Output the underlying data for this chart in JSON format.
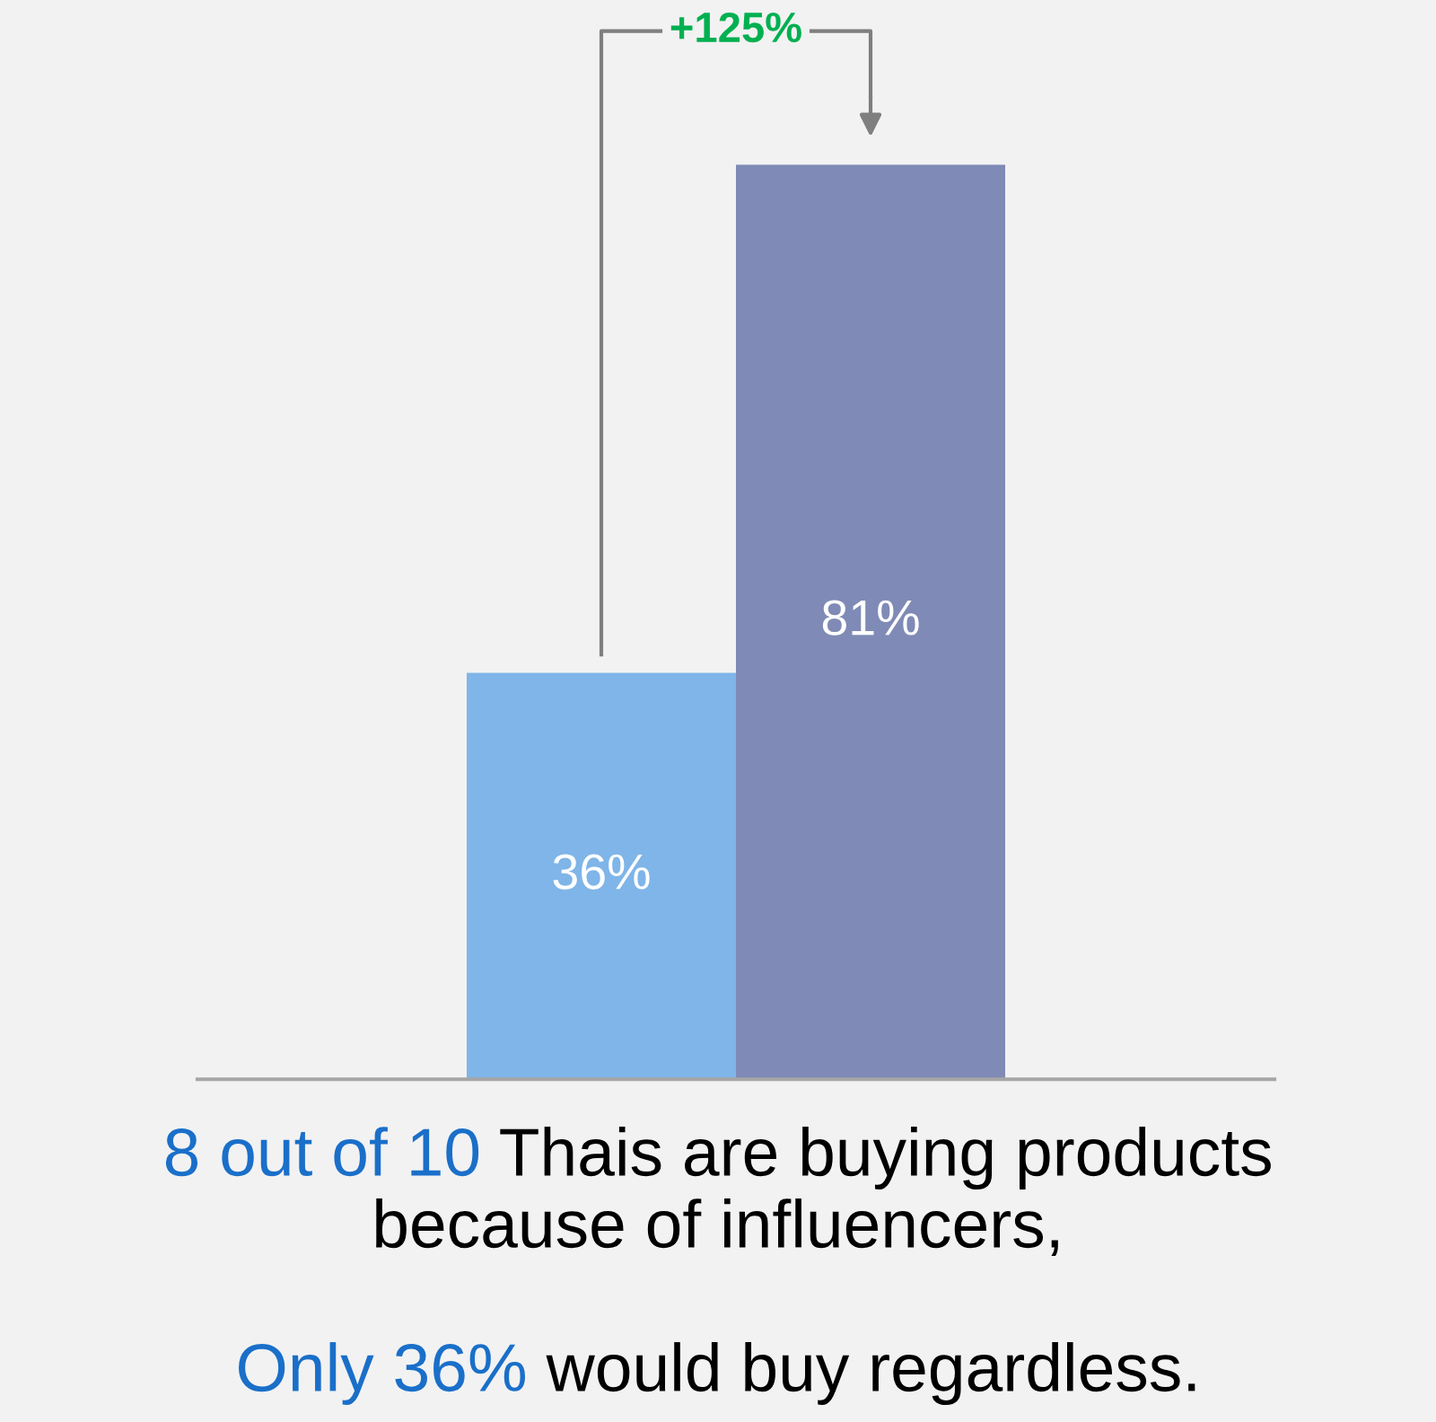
{
  "chart_data": {
    "type": "bar",
    "categories": [
      null,
      null
    ],
    "values": [
      36,
      81
    ],
    "colors": [
      "#7fb5e8",
      "#7f8bb6"
    ],
    "data_labels": true,
    "value_labels": [
      "36%",
      "81%"
    ],
    "annotations": [
      "+125%",
      "8 out of 10",
      "Thais are buying products",
      "because of influencers,",
      "Only 36%",
      "would buy regardless."
    ],
    "grid": false,
    "legend": false
  }
}
